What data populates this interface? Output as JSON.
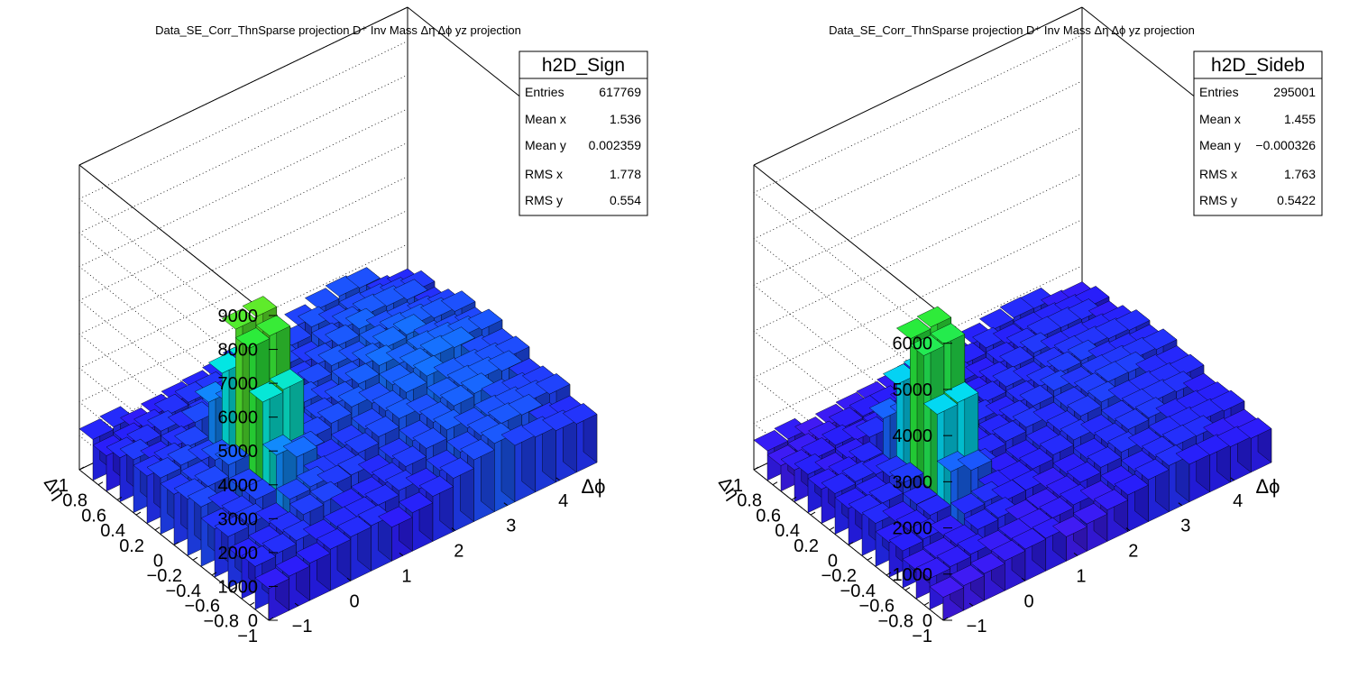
{
  "chart_data": [
    {
      "type": "lego3d",
      "title": "Data_SE_Corr_ThnSparse projection  D⁺ Inv Mass Δη Δϕ yz projection",
      "xlabel": "Δϕ",
      "ylabel": "Δη",
      "zlabel": "",
      "xlim": [
        -1.5708,
        4.7124
      ],
      "ylim": [
        -1,
        1
      ],
      "zlim": [
        0,
        9000
      ],
      "x_ticks": [
        "−1",
        "0",
        "1",
        "2",
        "3",
        "4"
      ],
      "y_ticks": [
        "−1",
        "−0.8",
        "−0.6",
        "−0.4",
        "−0.2",
        "0",
        "0.2",
        "0.4",
        "0.6",
        "0.8",
        "1"
      ],
      "z_ticks": [
        "0",
        "1000",
        "2000",
        "3000",
        "4000",
        "5000",
        "6000",
        "7000",
        "8000",
        "9000"
      ],
      "z_tick_values": [
        0,
        1000,
        2000,
        3000,
        4000,
        5000,
        6000,
        7000,
        8000,
        9000
      ],
      "grid": true,
      "palette": "rainbow",
      "surface": {
        "base": 1700,
        "peak": 6900,
        "near_width": 1.25,
        "away_side_bump": 700,
        "away_side_center": 3.1416
      },
      "stats": {
        "name": "h2D_Sign",
        "rows": [
          {
            "label": "Entries",
            "value": "617769"
          },
          {
            "label": "Mean x",
            "value": "1.536"
          },
          {
            "label": "Mean y",
            "value": "0.002359"
          },
          {
            "label": "RMS x",
            "value": "1.778"
          },
          {
            "label": "RMS y",
            "value": "0.554"
          }
        ]
      }
    },
    {
      "type": "lego3d",
      "title": "Data_SE_Corr_ThnSparse projection  D⁺ Inv Mass Δη Δϕ yz projection",
      "xlabel": "Δϕ",
      "ylabel": "Δη",
      "zlabel": "",
      "xlim": [
        -1.5708,
        4.7124
      ],
      "ylim": [
        -1,
        1
      ],
      "zlim": [
        0,
        6600
      ],
      "x_ticks": [
        "−1",
        "0",
        "1",
        "2",
        "3",
        "4"
      ],
      "y_ticks": [
        "−1",
        "−0.8",
        "−0.6",
        "−0.4",
        "−0.2",
        "0",
        "0.2",
        "0.4",
        "0.6",
        "0.8",
        "1"
      ],
      "z_ticks": [
        "0",
        "1000",
        "2000",
        "3000",
        "4000",
        "5000",
        "6000"
      ],
      "z_tick_values": [
        0,
        1000,
        2000,
        3000,
        4000,
        5000,
        6000
      ],
      "grid": true,
      "palette": "rainbow",
      "surface": {
        "base": 900,
        "peak": 5100,
        "near_width": 1.25,
        "away_side_bump": 300,
        "away_side_center": 3.1416
      },
      "stats": {
        "name": "h2D_Sideb",
        "rows": [
          {
            "label": "Entries",
            "value": "295001"
          },
          {
            "label": "Mean x",
            "value": "1.455"
          },
          {
            "label": "Mean y",
            "value": "−0.000326"
          },
          {
            "label": "RMS x",
            "value": "1.763"
          },
          {
            "label": "RMS y",
            "value": "0.5422"
          }
        ]
      }
    }
  ]
}
